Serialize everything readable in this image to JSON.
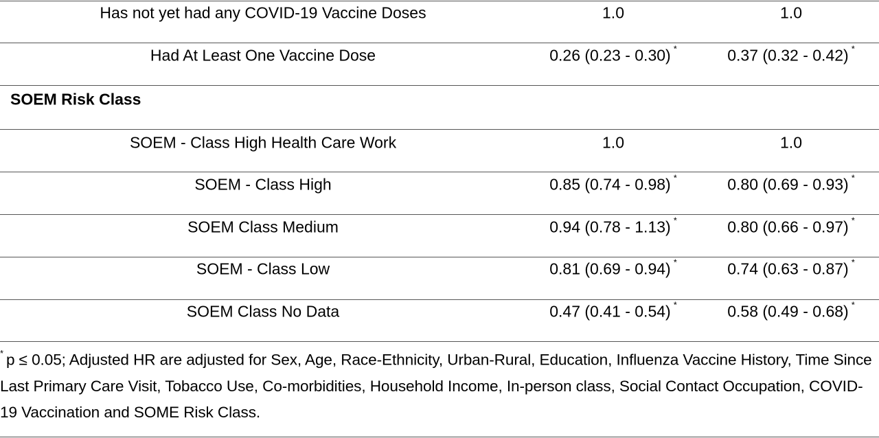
{
  "table": {
    "rows": [
      {
        "label": "Has not yet had any COVID-19 Vaccine Doses",
        "cells": [
          {
            "text": "1.0"
          },
          {
            "text": "1.0"
          }
        ]
      },
      {
        "label": "Had At Least One Vaccine Dose",
        "cells": [
          {
            "text": "0.26 (0.23 - 0.30)",
            "mark": "*"
          },
          {
            "text": "0.37 (0.32 - 0.42)",
            "mark": "*"
          }
        ]
      },
      {
        "section": "SOEM Risk Class"
      },
      {
        "label": "SOEM - Class High Health Care Work",
        "cells": [
          {
            "text": "1.0"
          },
          {
            "text": "1.0"
          }
        ]
      },
      {
        "label": "SOEM - Class High",
        "cells": [
          {
            "text": "0.85 (0.74 - 0.98)",
            "mark": "*"
          },
          {
            "text": "0.80 (0.69 - 0.93)",
            "mark": "*"
          }
        ]
      },
      {
        "label": "SOEM Class Medium",
        "cells": [
          {
            "text": "0.94 (0.78 - 1.13)",
            "mark": "*"
          },
          {
            "text": "0.80 (0.66 - 0.97)",
            "mark": "*"
          }
        ]
      },
      {
        "label": "SOEM - Class Low",
        "cells": [
          {
            "text": "0.81 (0.69 - 0.94)",
            "mark": "*"
          },
          {
            "text": "0.74 (0.63 - 0.87)",
            "mark": "*"
          }
        ]
      },
      {
        "label": "SOEM Class No Data",
        "cells": [
          {
            "text": "0.47 (0.41 - 0.54)",
            "mark": "*"
          },
          {
            "text": "0.58 (0.49 - 0.68)",
            "mark": "*"
          }
        ]
      }
    ],
    "footnote": {
      "mark": "*",
      "text": "p ≤ 0.05; Adjusted HR are adjusted for Sex, Age, Race-Ethnicity, Urban-Rural, Education, Influenza Vaccine History, Time Since Last Primary Care Visit, Tobacco Use, Co-morbidities, Household Income, In-person class, Social Contact Occupation, COVID-19 Vaccination and SOME Risk Class."
    }
  }
}
